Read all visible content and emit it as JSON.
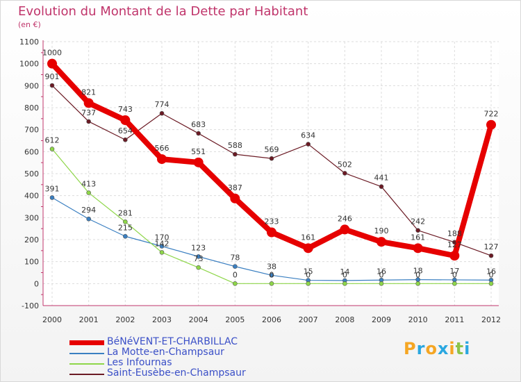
{
  "header": {
    "title": "Evolution du Montant de la Dette par Habitant",
    "subtitle": "(en €)"
  },
  "logo": {
    "letters": [
      "P",
      "r",
      "o",
      "x",
      "i",
      "t",
      "i"
    ],
    "colors": [
      "#f5a623",
      "#2aa7e0",
      "#f5a623",
      "#2aa7e0",
      "#f5a623",
      "#8bc34a",
      "#2aa7e0"
    ]
  },
  "chart_data": {
    "type": "line",
    "title": "Evolution du Montant de la Dette par Habitant",
    "subtitle": "(en €)",
    "categories": [
      "2000",
      "2001",
      "2002",
      "2003",
      "2004",
      "2005",
      "2006",
      "2007",
      "2008",
      "2009",
      "2010",
      "2011",
      "2012"
    ],
    "yticks": [
      "-100",
      "0",
      "100",
      "200",
      "300",
      "400",
      "500",
      "600",
      "700",
      "800",
      "900",
      "1000",
      "1100"
    ],
    "ylim": [
      -100,
      1100
    ],
    "grid": true,
    "legend_position": "bottom-left",
    "series": [
      {
        "name": "BéNéVENT-ET-CHARBILLAC",
        "color": "#e60000",
        "width": 8,
        "marker": 7,
        "values": [
          1000,
          821,
          743,
          566,
          551,
          387,
          233,
          161,
          246,
          190,
          161,
          127,
          722
        ],
        "labels": [
          "1000",
          "821",
          "743",
          "566",
          "551",
          "387",
          "233",
          "161",
          "246",
          "190",
          "161",
          "127",
          "722"
        ]
      },
      {
        "name": "La Motte-en-Champsaur",
        "color": "#3a7fc1",
        "width": 1.2,
        "marker": 3,
        "values": [
          391,
          294,
          215,
          170,
          123,
          78,
          38,
          15,
          14,
          16,
          18,
          17,
          16
        ],
        "labels": [
          "391",
          "294",
          "215",
          "170",
          "123",
          "78",
          "38",
          "15",
          "14",
          "16",
          "18",
          "17",
          "16"
        ]
      },
      {
        "name": "Les Infournas",
        "color": "#8ed649",
        "width": 1.2,
        "marker": 3,
        "values": [
          612,
          413,
          281,
          142,
          73,
          0,
          0,
          0,
          0,
          0,
          0,
          0,
          0
        ],
        "labels": [
          "612",
          "413",
          "281",
          "142",
          "73",
          "0",
          "0",
          "0",
          "0",
          "0",
          "0",
          "0",
          "0"
        ]
      },
      {
        "name": "Saint-Eusèbe-en-Champsaur",
        "color": "#6b1a24",
        "width": 1.2,
        "marker": 3,
        "values": [
          901,
          737,
          654,
          774,
          683,
          588,
          569,
          634,
          502,
          441,
          242,
          188,
          127
        ],
        "labels": [
          "901",
          "737",
          "654",
          "774",
          "683",
          "588",
          "569",
          "634",
          "502",
          "441",
          "242",
          "188",
          "127"
        ]
      }
    ]
  }
}
